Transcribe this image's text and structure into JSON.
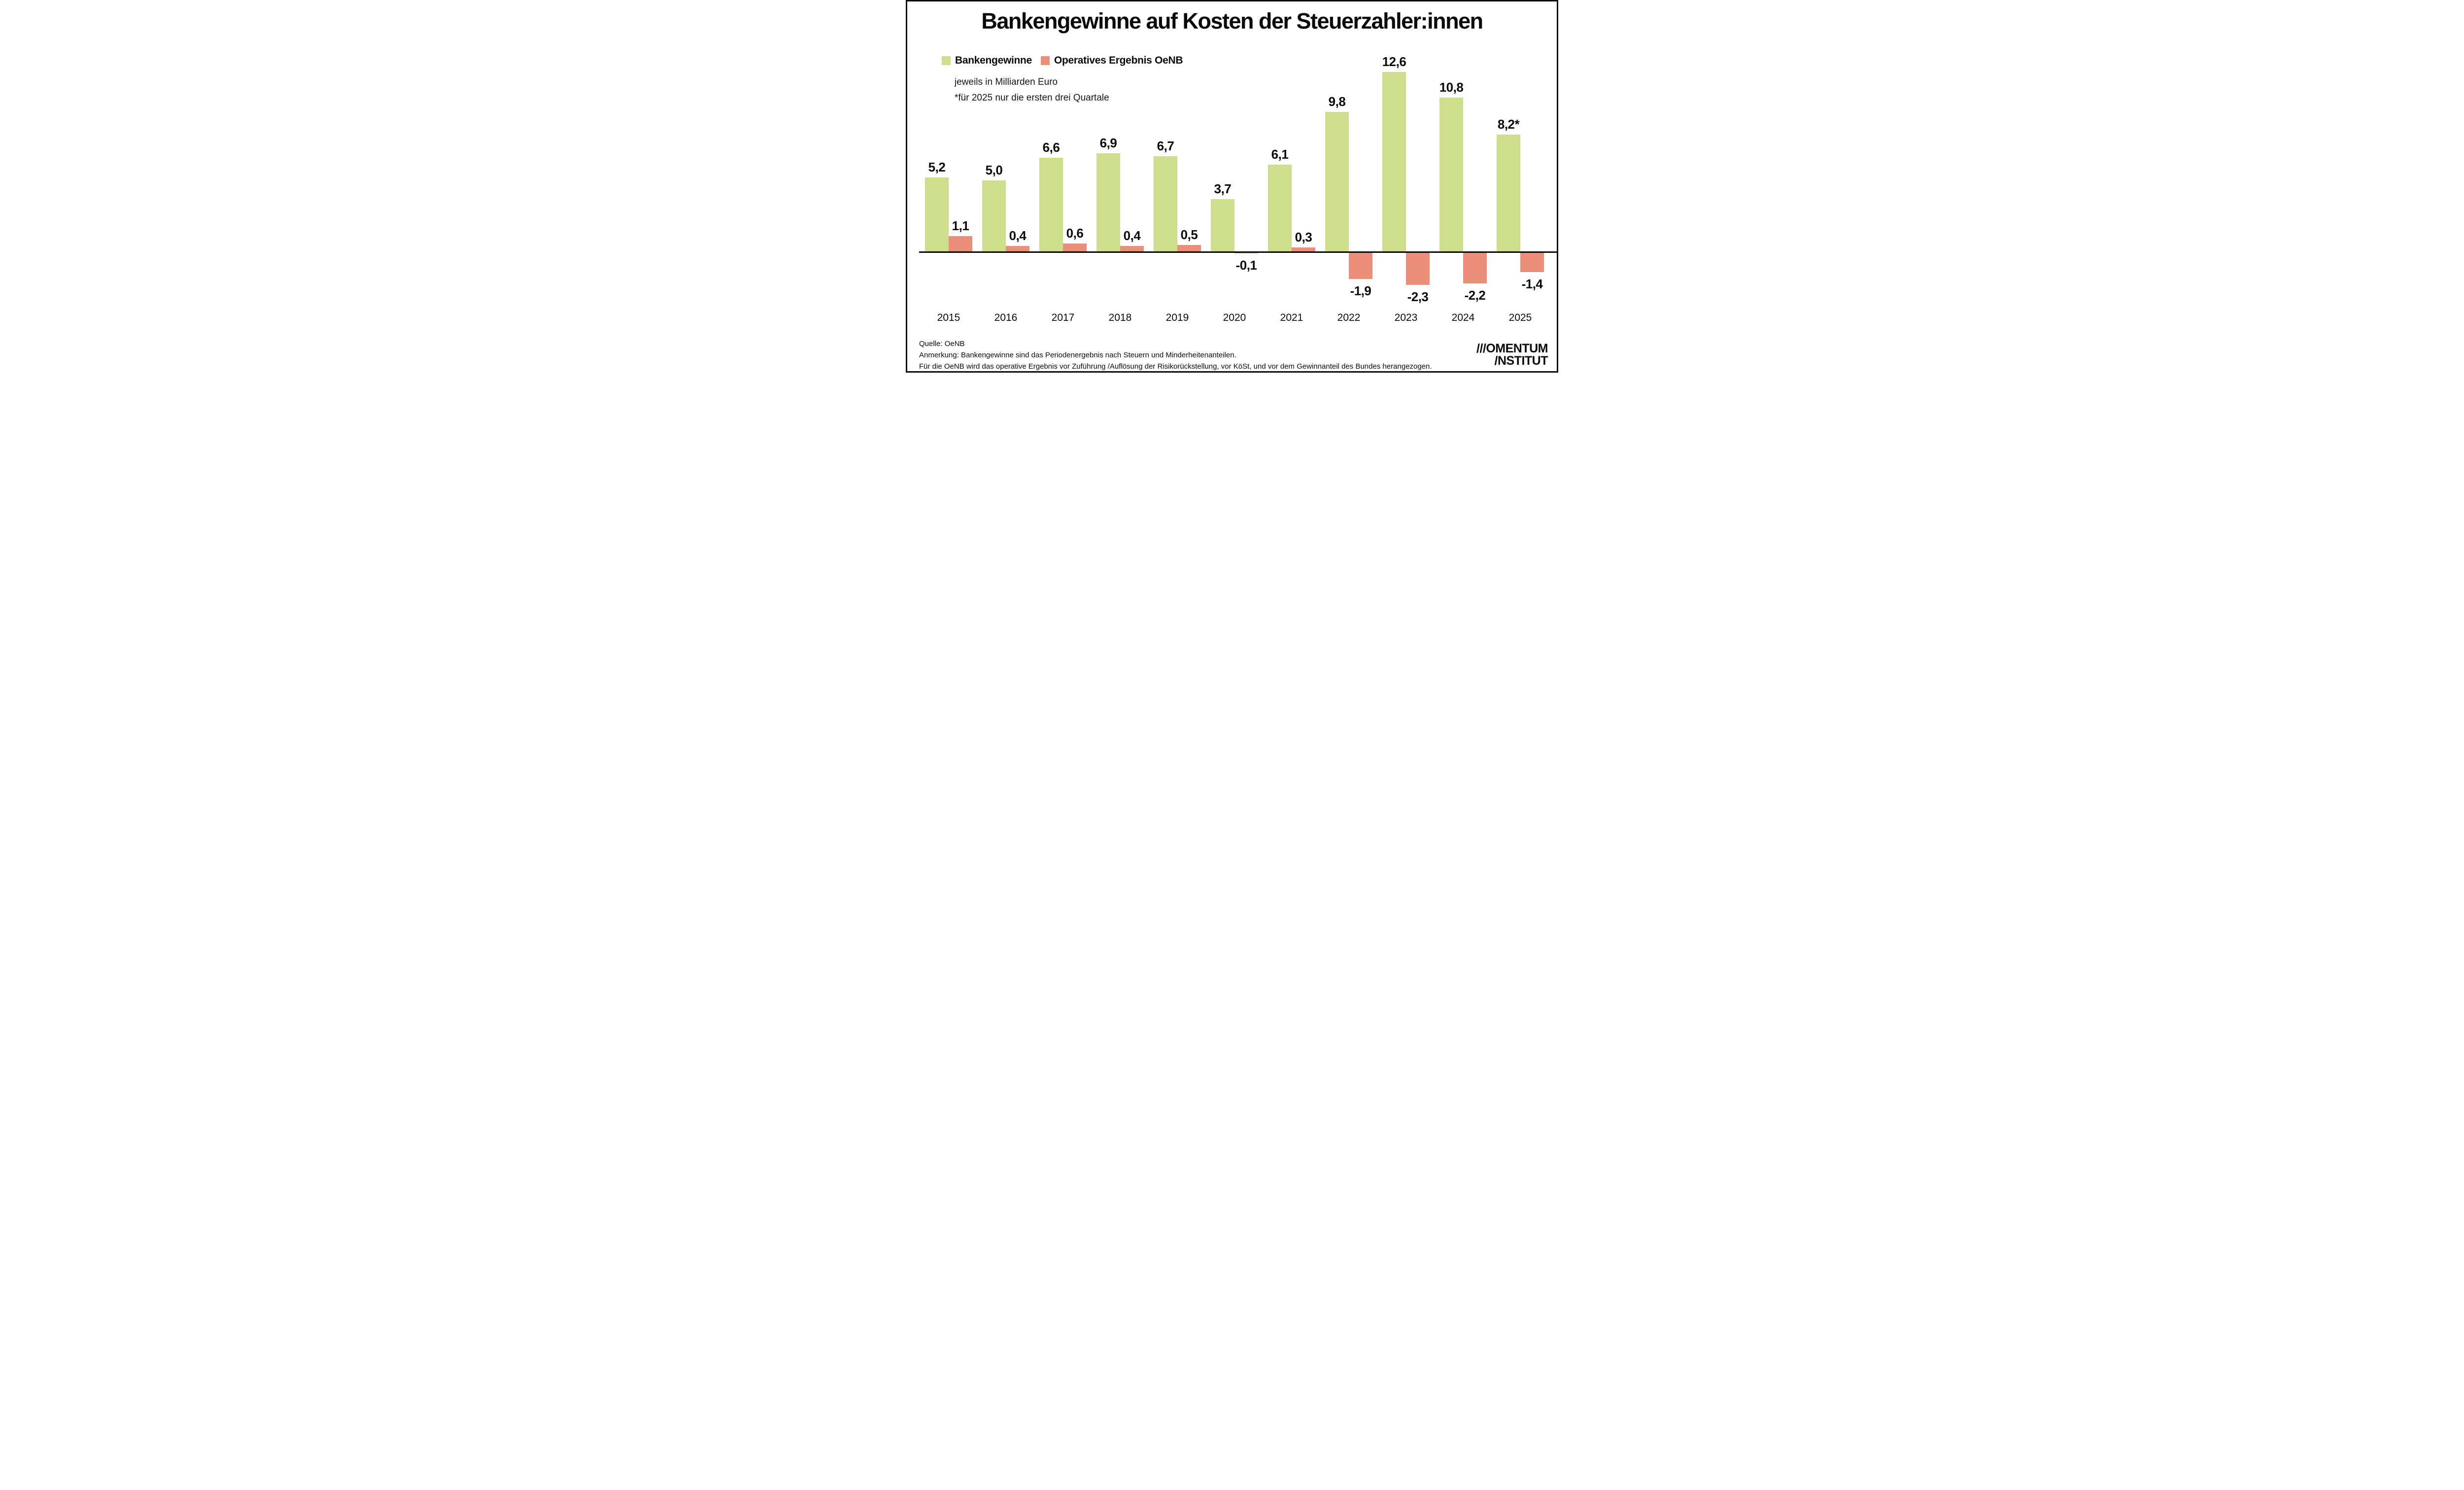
{
  "chart_data": {
    "type": "bar",
    "title": "Bankengewinne auf Kosten der Steuerzahler:innen",
    "notes": [
      "jeweils in Milliarden Euro",
      "*für 2025 nur die ersten drei Quartale"
    ],
    "categories": [
      "2015",
      "2016",
      "2017",
      "2018",
      "2019",
      "2020",
      "2021",
      "2022",
      "2023",
      "2024",
      "2025"
    ],
    "series": [
      {
        "name": "Bankengewinne",
        "color": "#cfdd8e",
        "values": [
          5.2,
          5.0,
          6.6,
          6.9,
          6.7,
          3.7,
          6.1,
          9.8,
          12.6,
          10.8,
          8.2
        ],
        "labels": [
          "5,2",
          "5,0",
          "6,6",
          "6,9",
          "6,7",
          "3,7",
          "6,1",
          "9,8",
          "12,6",
          "10,8",
          "8,2*"
        ]
      },
      {
        "name": "Operatives Ergebnis OeNB",
        "color": "#ec8f7a",
        "values": [
          1.1,
          0.4,
          0.6,
          0.4,
          0.5,
          -0.1,
          0.3,
          -1.9,
          -2.3,
          -2.2,
          -1.4
        ],
        "labels": [
          "1,1",
          "0,4",
          "0,6",
          "0,4",
          "0,5",
          "-0,1",
          "0,3",
          "-1,9",
          "-2,3",
          "-2,2",
          "-1,4"
        ]
      }
    ],
    "xlabel": "",
    "ylabel": "Milliarden Euro",
    "ylim": [
      -3,
      13
    ],
    "grid": false,
    "legend_position": "top-left",
    "axis_color": "#0a0a0a"
  },
  "footer": {
    "lines": [
      "Quelle: OeNB",
      "Anmerkung: Bankengewinne sind das Periodenergebnis nach Steuern und Minderheitenanteilen.",
      "Für die OeNB wird das operative Ergebnis vor Zuführung /Auflösung der Risikorückstellung, vor KöSt, und vor dem Gewinnanteil des Bundes herangezogen."
    ]
  },
  "logo": {
    "line1": "///OMENTUM",
    "line2": "/NSTITUT"
  }
}
